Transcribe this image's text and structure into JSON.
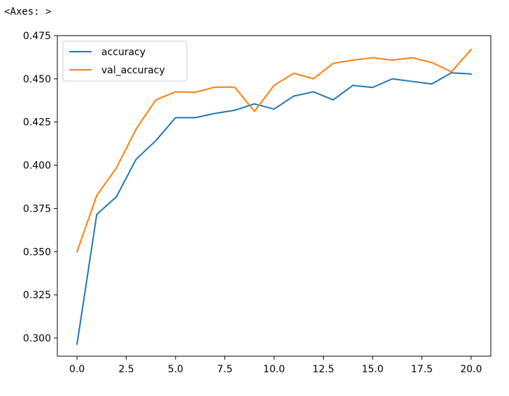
{
  "output_repr": "<Axes: >",
  "chart_data": {
    "type": "line",
    "title": "",
    "xlabel": "",
    "ylabel": "",
    "xlim": [
      -1.0,
      21.0
    ],
    "ylim": [
      0.2895,
      0.475
    ],
    "xticks": [
      0.0,
      2.5,
      5.0,
      7.5,
      10.0,
      12.5,
      15.0,
      17.5,
      20.0
    ],
    "xtick_labels": [
      "0.0",
      "2.5",
      "5.0",
      "7.5",
      "10.0",
      "12.5",
      "15.0",
      "17.5",
      "20.0"
    ],
    "yticks": [
      0.3,
      0.325,
      0.35,
      0.375,
      0.4,
      0.425,
      0.45,
      0.475
    ],
    "ytick_labels": [
      "0.300",
      "0.325",
      "0.350",
      "0.375",
      "0.400",
      "0.425",
      "0.450",
      "0.475"
    ],
    "grid": false,
    "legend_position": "upper-left",
    "x": [
      0,
      1,
      2,
      3,
      4,
      5,
      6,
      7,
      8,
      9,
      10,
      11,
      12,
      13,
      14,
      15,
      16,
      17,
      18,
      19,
      20
    ],
    "series": [
      {
        "name": "accuracy",
        "color": "#1f77b4",
        "values": [
          0.2965,
          0.3715,
          0.3818,
          0.4035,
          0.4142,
          0.4275,
          0.4275,
          0.43,
          0.4318,
          0.4355,
          0.4325,
          0.44,
          0.4425,
          0.4378,
          0.4462,
          0.445,
          0.45,
          0.4485,
          0.447,
          0.4535,
          0.4528
        ]
      },
      {
        "name": "val_accuracy",
        "color": "#ff7f0e",
        "values": [
          0.35,
          0.3825,
          0.3985,
          0.421,
          0.4378,
          0.4425,
          0.4422,
          0.4452,
          0.4452,
          0.4312,
          0.4462,
          0.4532,
          0.45,
          0.459,
          0.4608,
          0.4622,
          0.4608,
          0.4622,
          0.4595,
          0.454,
          0.467
        ]
      }
    ]
  }
}
